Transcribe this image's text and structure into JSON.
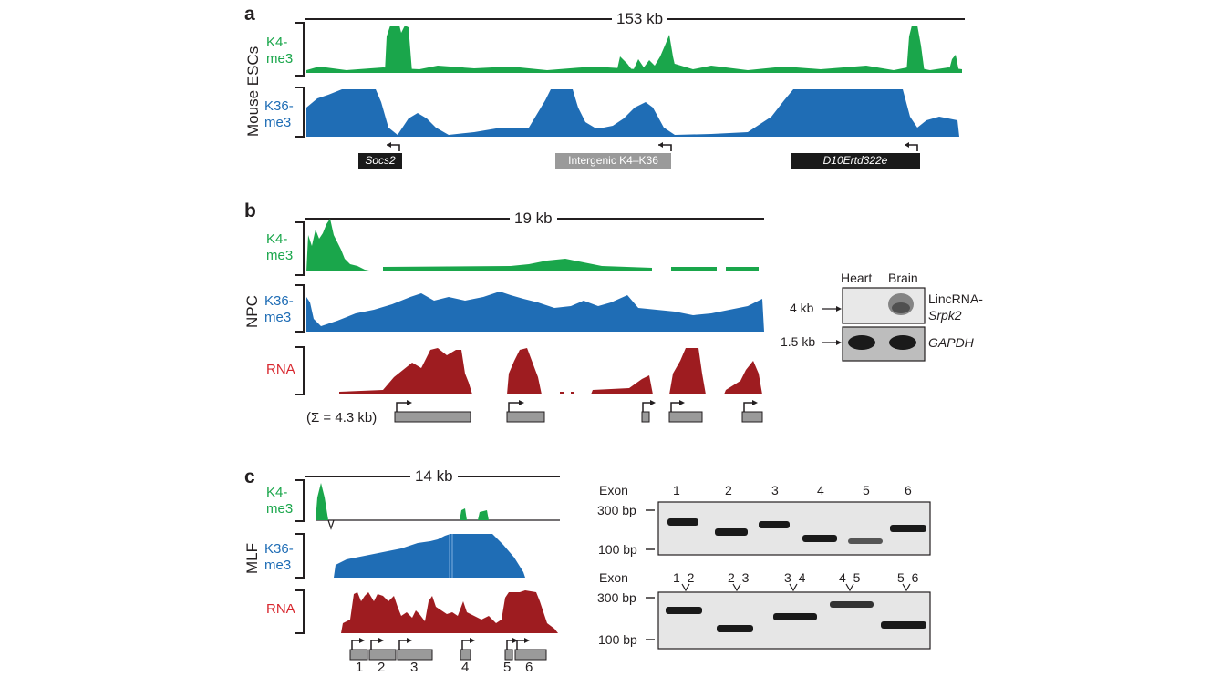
{
  "panel_a": {
    "letter": "a",
    "scale": "153 kb",
    "cell_label": "Mouse ESCs",
    "track_k4": "K4-\nme3",
    "track_k36": "K36-\nme3",
    "genes": [
      "Socs2",
      "Intergenic K4–K36",
      "D10Ertd322e"
    ]
  },
  "panel_b": {
    "letter": "b",
    "scale": "19 kb",
    "cell_label": "NPC",
    "track_k4": "K4-\nme3",
    "track_k36": "K36-\nme3",
    "track_rna": "RNA",
    "sum_label": "(Σ = 4.3 kb)",
    "blot_columns": [
      "Heart",
      "Brain"
    ],
    "blot_size_1": "4 kb",
    "blot_size_2": "1.5 kb",
    "blot_target_1a": "LincRNA-",
    "blot_target_1b": "Srpk2",
    "blot_target_2": "GAPDH"
  },
  "panel_c": {
    "letter": "c",
    "scale": "14 kb",
    "cell_label": "MLF",
    "track_k4": "K4-\nme3",
    "track_k36": "K36-\nme3",
    "track_rna": "RNA",
    "exon_numbers": [
      "1",
      "2",
      "3",
      "4",
      "5",
      "6"
    ],
    "gel1_header": "Exon",
    "gel1_lanes": [
      "1",
      "2",
      "3",
      "4",
      "5",
      "6"
    ],
    "gel2_header": "Exon",
    "gel2_lanes": [
      "1  2",
      "2  3",
      "3  4",
      "4  5",
      "5  6"
    ],
    "size_300": "300 bp",
    "size_100": "100 bp"
  },
  "colors": {
    "k4": "#1aa64b",
    "k36": "#1f6db5",
    "rna": "#9e1c20",
    "gene": "#1a1a1a",
    "exon": "#9a9a9a"
  }
}
